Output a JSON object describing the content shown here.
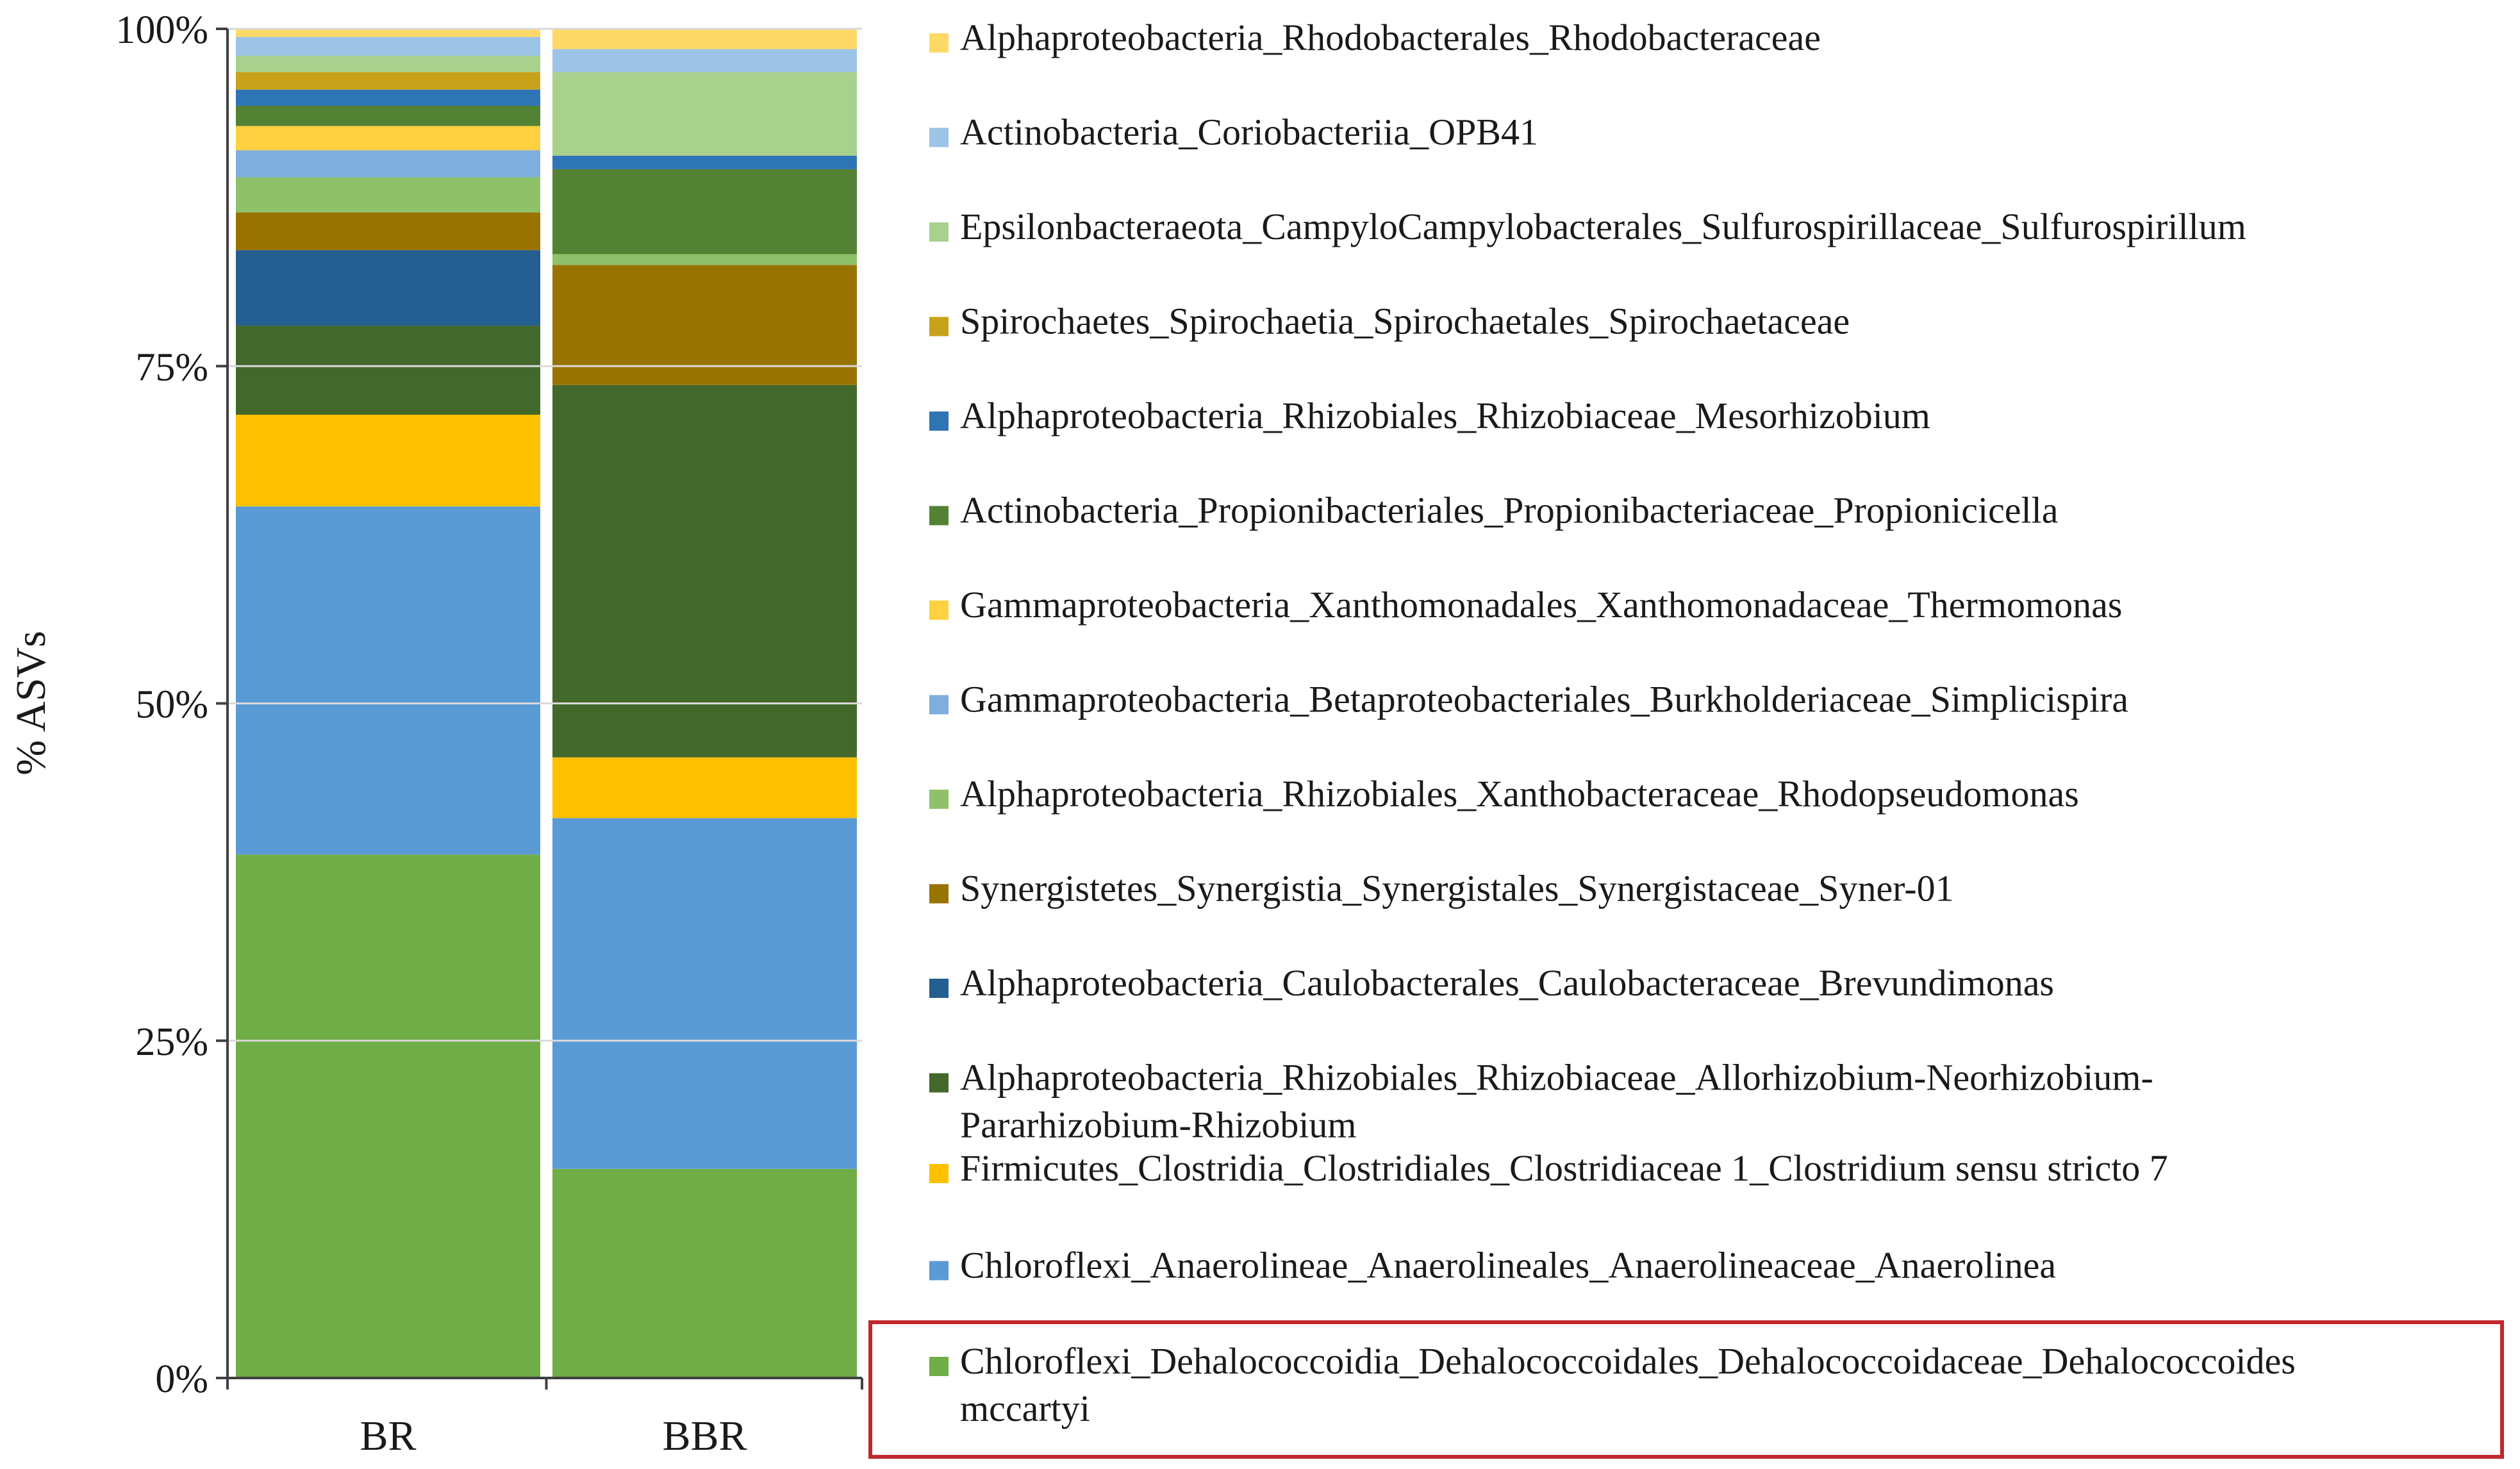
{
  "chart_data": {
    "type": "bar",
    "stacked": true,
    "normalized": true,
    "categories": [
      "BR",
      "BBR"
    ],
    "ylabel": "% ASVs",
    "ylim": [
      0,
      100
    ],
    "yticks": [
      "0%",
      "25%",
      "50%",
      "75%",
      "100%"
    ],
    "legend_placement": "right",
    "highlighted_series": "Chloroflexi_Dehalococcoidia_Dehalococcoidales_Dehalococcoidaceae_Dehalococcoides mccartyi",
    "highlight_color": "#c0282d",
    "series": [
      {
        "name": "Chloroflexi_Dehalococcoidia_Dehalococcoidales_Dehalococcoidaceae_Dehalococcoides mccartyi",
        "color": "#70ad47",
        "values": [
          38.8,
          15.5
        ]
      },
      {
        "name": "Chloroflexi_Anaerolineae_Anaerolineales_Anaerolineaceae_Anaerolinea",
        "color": "#5b9bd5",
        "values": [
          25.8,
          26.0
        ]
      },
      {
        "name": "Firmicutes_Clostridia_Clostridiales_Clostridiaceae 1_Clostridium sensu stricto 7",
        "color": "#ffc000",
        "values": [
          6.8,
          4.5
        ]
      },
      {
        "name": "Alphaproteobacteria_Rhizobiales_Rhizobiaceae_Allorhizobium-Neorhizobium-Pararhizobium-Rhizobium",
        "color": "#43682b",
        "values": [
          6.6,
          27.6
        ]
      },
      {
        "name": "Alphaproteobacteria_Caulobacterales_Caulobacteraceae_Brevundimonas",
        "color": "#255e91",
        "values": [
          5.6,
          0.0
        ]
      },
      {
        "name": "Synergistetes_Synergistia_Synergistales_Synergistaceae_Syner-01",
        "color": "#997300",
        "values": [
          2.8,
          8.9
        ]
      },
      {
        "name": "Alphaproteobacteria_Rhizobiales_Xanthobacteraceae_Rhodopseudomonas",
        "color": "#8fc16a",
        "values": [
          2.6,
          0.8
        ]
      },
      {
        "name": "Gammaproteobacteria_Betaproteobacteriales_Burkholderiaceae_Simplicispira",
        "color": "#7eaedd",
        "values": [
          2.0,
          0.0
        ]
      },
      {
        "name": "Gammaproteobacteria_Xanthomonadales_Xanthomonadaceae_Thermomonas",
        "color": "#ffd040",
        "values": [
          1.8,
          0.0
        ]
      },
      {
        "name": "Actinobacteria_Propionibacteriales_Propionibacteriaceae_Propionicicella",
        "color": "#548235",
        "values": [
          1.5,
          6.3
        ]
      },
      {
        "name": "Alphaproteobacteria_Rhizobiales_Rhizobiaceae_Mesorhizobium",
        "color": "#2e75b6",
        "values": [
          1.2,
          1.0
        ]
      },
      {
        "name": "Spirochaetes_Spirochaetia_Spirochaetales_Spirochaetaceae",
        "color": "#c9a21b",
        "values": [
          1.3,
          0.0
        ]
      },
      {
        "name": "Epsilonbacteraeota_CampyloCampylobacterales_Sulfurospirillaceae_Sulfurospirillum",
        "color": "#a9d18e",
        "values": [
          1.2,
          6.2
        ]
      },
      {
        "name": "Actinobacteria_Coriobacteriia_OPB41",
        "color": "#9dc3e6",
        "values": [
          1.4,
          1.7
        ]
      },
      {
        "name": "Alphaproteobacteria_Rhodobacterales_Rhodobacteraceae",
        "color": "#ffd966",
        "values": [
          0.6,
          1.5
        ]
      }
    ]
  }
}
